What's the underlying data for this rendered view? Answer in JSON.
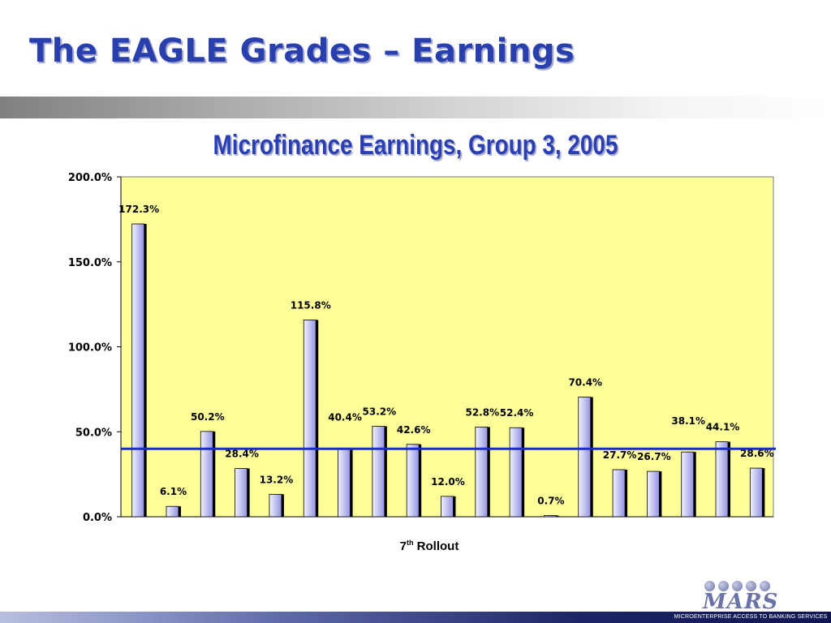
{
  "slide": {
    "title": "The EAGLE Grades – Earnings"
  },
  "logo": {
    "name": "MARS",
    "tagline": "MICROENTERPRISE ACCESS TO BANKING SERVICES"
  },
  "colors": {
    "title": "#2a3fae",
    "plot_background": "#ffff99",
    "bar_fill_light": "#f2f2ff",
    "bar_fill_dark": "#9494e0",
    "reference_line": "#1c2ec0"
  },
  "chart_data": {
    "type": "bar",
    "title": "Microfinance Earnings, Group 3, 2005",
    "xlabel": "7",
    "xlabel_superscript": "th",
    "xlabel_suffix": " Rollout",
    "ylabel": "",
    "ylim": [
      0,
      200
    ],
    "ytick_values": [
      0,
      50,
      100,
      150,
      200
    ],
    "ytick_labels": [
      "0.0%",
      "50.0%",
      "100.0%",
      "150.0%",
      "200.0%"
    ],
    "values": [
      172.3,
      6.1,
      50.2,
      28.4,
      13.2,
      115.8,
      40.4,
      53.2,
      42.6,
      12.0,
      52.8,
      52.4,
      0.7,
      70.4,
      27.7,
      26.7,
      38.1,
      44.1,
      28.6
    ],
    "data_labels": [
      "172.3%",
      "6.1%",
      "50.2%",
      "28.4%",
      "13.2%",
      "115.8%",
      "40.4%",
      "53.2%",
      "42.6%",
      "12.0%",
      "52.8%",
      "52.4%",
      "0.7%",
      "70.4%",
      "27.7%",
      "26.7%",
      "38.1%",
      "44.1%",
      "28.6%"
    ],
    "reference_line": 40.0,
    "grid": false,
    "legend": "none"
  }
}
